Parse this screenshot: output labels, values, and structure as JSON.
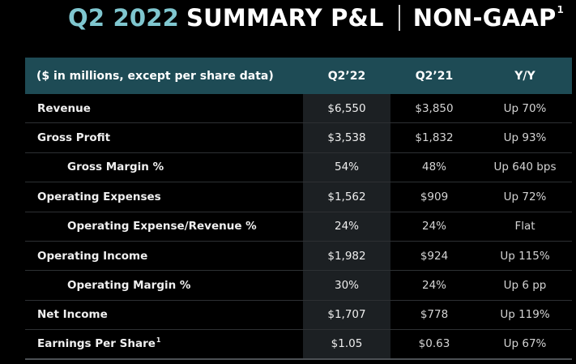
{
  "title": {
    "period": "Q2 2022",
    "main": "SUMMARY P&L",
    "non_gaap": "NON-GAAP",
    "superscript": "1"
  },
  "table": {
    "headers": {
      "label": "($ in millions, except per share data)",
      "q22": "Q2’22",
      "q21": "Q2’21",
      "yy": "Y/Y"
    },
    "rows": [
      {
        "label": "Revenue",
        "q22": "$6,550",
        "q21": "$3,850",
        "yy": "Up 70%"
      },
      {
        "label": "Gross Profit",
        "q22": "$3,538",
        "q21": "$1,832",
        "yy": "Up 93%"
      },
      {
        "label": "Gross Margin %",
        "q22": "54%",
        "q21": "48%",
        "yy": "Up 640 bps"
      },
      {
        "label": "Operating Expenses",
        "q22": "$1,562",
        "q21": "$909",
        "yy": "Up 72%"
      },
      {
        "label": "Operating Expense/Revenue %",
        "q22": "24%",
        "q21": "24%",
        "yy": "Flat"
      },
      {
        "label": "Operating Income",
        "q22": "$1,982",
        "q21": "$924",
        "yy": "Up 115%"
      },
      {
        "label": "Operating Margin %",
        "q22": "30%",
        "q21": "24%",
        "yy": "Up 6 pp"
      },
      {
        "label": "Net Income",
        "q22": "$1,707",
        "q21": "$778",
        "yy": "Up 119%"
      },
      {
        "label": "Earnings Per Share",
        "label_sup": "1",
        "q22": "$1.05",
        "q21": "$0.63",
        "yy": "Up 67%"
      }
    ]
  },
  "colors": {
    "period_title": "#7fc6cf",
    "header_bg": "#1e4b55",
    "highlight_column_bg": "#1c2023",
    "background": "#000000"
  }
}
